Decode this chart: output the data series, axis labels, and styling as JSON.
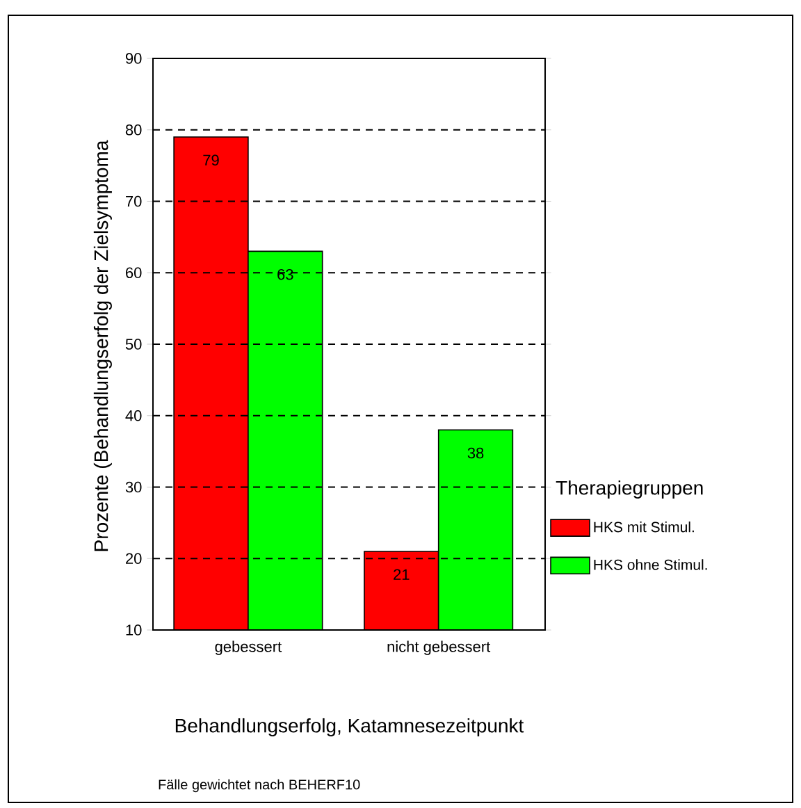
{
  "chart_data": {
    "type": "bar",
    "xlabel": "Behandlungserfolg, Katamnesezeitpunkt",
    "ylabel": "Prozente (Behandlungserfolg der Zielsymptoma",
    "categories": [
      "gebessert",
      "nicht gebessert"
    ],
    "series": [
      {
        "name": "HKS mit Stimul.",
        "color": "#ff0000",
        "values": [
          79,
          21
        ]
      },
      {
        "name": "HKS ohne Stimul.",
        "color": "#00ff00",
        "values": [
          63,
          38
        ]
      }
    ],
    "ylim": [
      10,
      90
    ],
    "yticks": [
      10,
      20,
      30,
      40,
      50,
      60,
      70,
      80,
      90
    ],
    "grid": "y",
    "legend": "right",
    "legend_title": "Therapiegruppen",
    "data_labels": true,
    "annotations": [
      "Fälle gewichtet nach BEHERF10"
    ]
  }
}
